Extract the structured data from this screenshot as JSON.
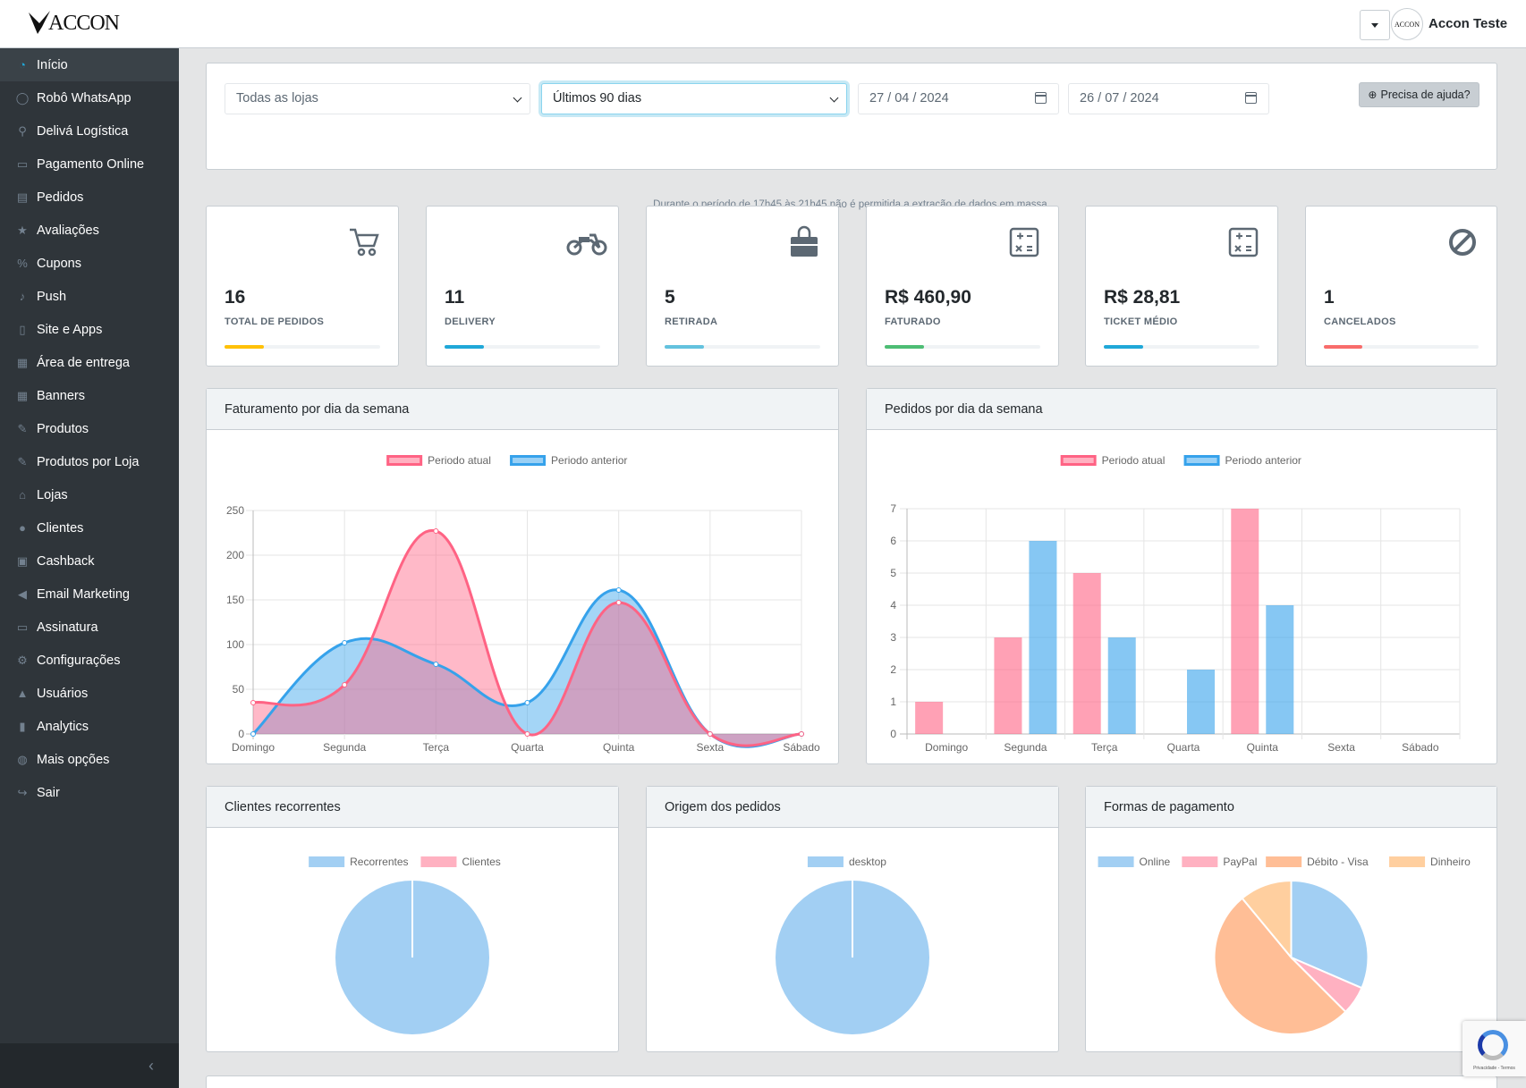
{
  "header": {
    "logo_text": "ACCON",
    "avatar_text": "ACCON",
    "user_name": "Accon Teste"
  },
  "sidebar": {
    "items": [
      {
        "label": "Início",
        "icon": "dashboard-icon"
      },
      {
        "label": "Robô WhatsApp",
        "icon": "whatsapp-icon"
      },
      {
        "label": "Delivá Logística",
        "icon": "motorcycle-icon"
      },
      {
        "label": "Pagamento Online",
        "icon": "credit-card-icon"
      },
      {
        "label": "Pedidos",
        "icon": "document-icon"
      },
      {
        "label": "Avaliações",
        "icon": "star-icon"
      },
      {
        "label": "Cupons",
        "icon": "percent-icon"
      },
      {
        "label": "Push",
        "icon": "bell-icon"
      },
      {
        "label": "Site e Apps",
        "icon": "mobile-icon"
      },
      {
        "label": "Área de entrega",
        "icon": "map-icon"
      },
      {
        "label": "Banners",
        "icon": "table-icon"
      },
      {
        "label": "Produtos",
        "icon": "edit-icon"
      },
      {
        "label": "Produtos por Loja",
        "icon": "edit-icon"
      },
      {
        "label": "Lojas",
        "icon": "home-icon"
      },
      {
        "label": "Clientes",
        "icon": "user-icon"
      },
      {
        "label": "Cashback",
        "icon": "money-icon"
      },
      {
        "label": "Email Marketing",
        "icon": "bullhorn-icon"
      },
      {
        "label": "Assinatura",
        "icon": "credit-card-icon"
      },
      {
        "label": "Configurações",
        "icon": "gear-icon"
      },
      {
        "label": "Usuários",
        "icon": "lock-icon"
      },
      {
        "label": "Analytics",
        "icon": "bar-chart-icon"
      },
      {
        "label": "Mais opções",
        "icon": "globe-icon"
      },
      {
        "label": "Sair",
        "icon": "logout-icon"
      }
    ],
    "active_index": 0
  },
  "filters": {
    "store": "Todas as lojas",
    "period": "Últimos 90 dias",
    "date_start": "27 / 04 / 2024",
    "date_end": "26 / 07 / 2024",
    "help_label": "Precisa de ajuda?",
    "notice": "Durante o período de 17h45 às 21h45 não é permitida a extração de dados em massa."
  },
  "stats": [
    {
      "value": "16",
      "label": "TOTAL DE PEDIDOS",
      "icon": "shopping-cart-icon",
      "color": "#ffc107",
      "progress": 0.25
    },
    {
      "value": "11",
      "label": "DELIVERY",
      "icon": "motorcycle-icon",
      "color": "#20a8d8",
      "progress": 0.25
    },
    {
      "value": "5",
      "label": "RETIRADA",
      "icon": "shopping-bag-icon",
      "color": "#63c2de",
      "progress": 0.25
    },
    {
      "value": "R$ 460,90",
      "label": "FATURADO",
      "icon": "calculator-icon",
      "color": "#4dbd74",
      "progress": 0.25
    },
    {
      "value": "R$ 28,81",
      "label": "TICKET MÉDIO",
      "icon": "calculator-icon",
      "color": "#20a8d8",
      "progress": 0.25
    },
    {
      "value": "1",
      "label": "CANCELADOS",
      "icon": "ban-icon",
      "color": "#f86c6b",
      "progress": 0.25
    }
  ],
  "panels": {
    "faturamento": "Faturamento por dia da semana",
    "pedidos": "Pedidos por dia da semana",
    "clientes": "Clientes recorrentes",
    "origem": "Origem dos pedidos",
    "pagamento": "Formas de pagamento"
  },
  "chart_data": [
    {
      "type": "area",
      "title": "Faturamento por dia da semana",
      "categories": [
        "Domingo",
        "Segunda",
        "Terça",
        "Quarta",
        "Quinta",
        "Sexta",
        "Sábado"
      ],
      "series": [
        {
          "name": "Periodo atual",
          "values": [
            35,
            55,
            227,
            0,
            147,
            0,
            0
          ],
          "color": "#ff6384"
        },
        {
          "name": "Periodo anterior",
          "values": [
            0,
            102,
            78,
            35,
            161,
            0,
            0
          ],
          "color": "#36a2eb"
        }
      ],
      "ylim": [
        0,
        250
      ],
      "yticks": [
        0,
        50,
        100,
        150,
        200,
        250
      ],
      "legend": "top",
      "grid": true
    },
    {
      "type": "bar",
      "title": "Pedidos por dia da semana",
      "categories": [
        "Domingo",
        "Segunda",
        "Terça",
        "Quarta",
        "Quinta",
        "Sexta",
        "Sábado"
      ],
      "series": [
        {
          "name": "Periodo atual",
          "values": [
            1,
            3,
            5,
            0,
            7,
            0,
            0
          ],
          "color": "#ff6384"
        },
        {
          "name": "Periodo anterior",
          "values": [
            0,
            6,
            3,
            2,
            4,
            0,
            0
          ],
          "color": "#36a2eb"
        }
      ],
      "ylim": [
        0,
        7
      ],
      "yticks": [
        0,
        1,
        2,
        3,
        4,
        5,
        6,
        7
      ],
      "legend": "top",
      "grid": true
    },
    {
      "type": "pie",
      "title": "Clientes recorrentes",
      "labels": [
        "Recorrentes",
        "Clientes"
      ],
      "values": [
        1,
        0
      ],
      "colors": [
        "#a2cff3",
        "#ffb1c1"
      ],
      "legend": "top"
    },
    {
      "type": "pie",
      "title": "Origem dos pedidos",
      "labels": [
        "desktop"
      ],
      "values": [
        1
      ],
      "colors": [
        "#a2cff3"
      ],
      "legend": "top"
    },
    {
      "type": "pie",
      "title": "Formas de pagamento",
      "labels": [
        "Online",
        "PayPal",
        "Débito - Visa",
        "Dinheiro"
      ],
      "values": [
        31.5,
        6,
        51.5,
        11
      ],
      "colors": [
        "#a2cff3",
        "#ffb1c1",
        "#ffbe96",
        "#ffcf9f"
      ],
      "legend": "top"
    }
  ],
  "recaptcha": {
    "text": "Privacidade - Termos"
  }
}
